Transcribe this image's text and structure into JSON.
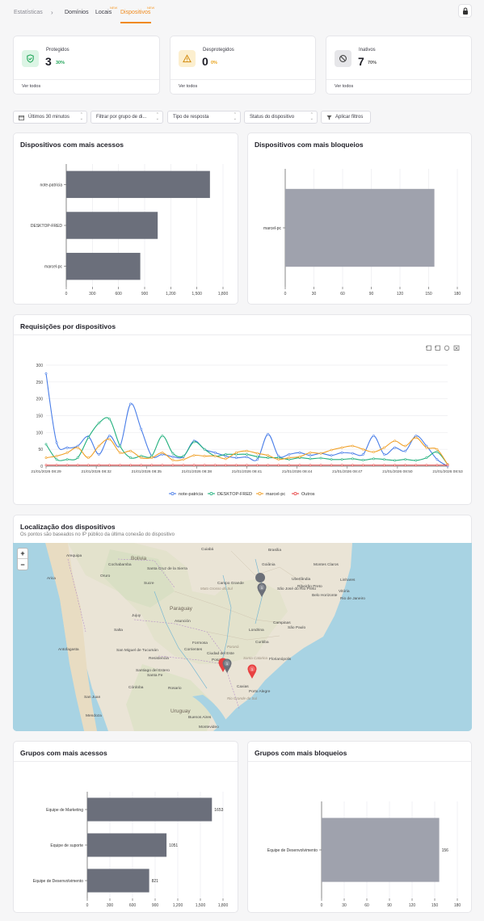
{
  "nav": {
    "breadcrumb_root": "Estatísticas",
    "separator": "›",
    "tabs": [
      {
        "label": "Domínios"
      },
      {
        "label": "Locais",
        "badge": "NEW"
      },
      {
        "label": "Dispositivos",
        "badge": "NEW",
        "active": true
      }
    ],
    "lock_icon": "lock-icon"
  },
  "stats": [
    {
      "title": "Protegidos",
      "value": "3",
      "pct": "30%",
      "link": "Ver todos",
      "icon": "shield-icon",
      "color": "#22a55a",
      "bg": "#dcf5e5"
    },
    {
      "title": "Desprotegidos",
      "value": "0",
      "pct": "0%",
      "link": "Ver todos",
      "icon": "warning-icon",
      "color": "#e8a21a",
      "bg": "#fcefcf"
    },
    {
      "title": "Inativos",
      "value": "7",
      "pct": "70%",
      "link": "Ver todos",
      "icon": "block-icon",
      "color": "#555",
      "bg": "#e6e6e9"
    }
  ],
  "filters": {
    "time": "Últimos 30 minutos",
    "group": "Filtrar por grupo de di...",
    "response": "Tipo de resposta",
    "status": "Status do dispositivo",
    "apply": "Aplicar filtros"
  },
  "panels": {
    "top_access": {
      "title": "Dispositivos com mais acessos"
    },
    "top_blocks": {
      "title": "Dispositivos com mais bloqueios"
    },
    "requests": {
      "title": "Requisições por dispositivos"
    },
    "location": {
      "title": "Localização dos dispositivos",
      "subtitle": "Os pontos são baseados no IP público da última conexão do dispositivo"
    },
    "groups_access": {
      "title": "Grupos com mais acessos"
    },
    "groups_blocks": {
      "title": "Grupos com mais bloqueios"
    }
  },
  "map": {
    "zoom_in": "+",
    "zoom_out": "−",
    "labels": [
      {
        "t": "Cuiabá",
        "k": "city"
      },
      {
        "t": "Brasília",
        "k": "city"
      },
      {
        "t": "Goiânia",
        "k": "city"
      },
      {
        "t": "Bolivia",
        "k": "country"
      },
      {
        "t": "Cochabamba",
        "k": "city"
      },
      {
        "t": "Santa Cruz de la Sierra",
        "k": "city"
      },
      {
        "t": "Oruro",
        "k": "city"
      },
      {
        "t": "Sucre",
        "k": "city"
      },
      {
        "t": "Arequipa",
        "k": "city"
      },
      {
        "t": "Arica",
        "k": "city"
      },
      {
        "t": "Montes Claros",
        "k": "city"
      },
      {
        "t": "Uberlândia",
        "k": "city"
      },
      {
        "t": "Belo Horizonte",
        "k": "city"
      },
      {
        "t": "Ribeirão Preto",
        "k": "city"
      },
      {
        "t": "São José do Rio Preto",
        "k": "city"
      },
      {
        "t": "Linhares",
        "k": "city"
      },
      {
        "t": "Vitória",
        "k": "city"
      },
      {
        "t": "Campo Grande",
        "k": "city"
      },
      {
        "t": "Mato Grosso do Sul",
        "k": "region"
      },
      {
        "t": "Paraguay",
        "k": "country"
      },
      {
        "t": "Asunción",
        "k": "city"
      },
      {
        "t": "Londrina",
        "k": "city"
      },
      {
        "t": "Campinas",
        "k": "city"
      },
      {
        "t": "São Paulo",
        "k": "city"
      },
      {
        "t": "Curitiba",
        "k": "city"
      },
      {
        "t": "Ciudad del Este",
        "k": "city"
      },
      {
        "t": "Formosa",
        "k": "city"
      },
      {
        "t": "Corrientes",
        "k": "city"
      },
      {
        "t": "Posadas",
        "k": "city"
      },
      {
        "t": "Antofagasta",
        "k": "city"
      },
      {
        "t": "Salta",
        "k": "city"
      },
      {
        "t": "San Miguel de Tucumán",
        "k": "city"
      },
      {
        "t": "Resistencia",
        "k": "city"
      },
      {
        "t": "Santa Fe",
        "k": "city"
      },
      {
        "t": "Córdoba",
        "k": "city"
      },
      {
        "t": "San Juan",
        "k": "city"
      },
      {
        "t": "Mendoza",
        "k": "city"
      },
      {
        "t": "Rosario",
        "k": "city"
      },
      {
        "t": "Buenos Aires",
        "k": "city"
      },
      {
        "t": "Montevideo",
        "k": "city"
      },
      {
        "t": "Uruguay",
        "k": "country"
      },
      {
        "t": "Porto Alegre",
        "k": "city"
      },
      {
        "t": "Caxias",
        "k": "city"
      },
      {
        "t": "Rio Grande do Sul",
        "k": "region"
      },
      {
        "t": "Santa Catarina",
        "k": "region"
      },
      {
        "t": "Florianópolis",
        "k": "city"
      },
      {
        "t": "Paraná",
        "k": "region"
      },
      {
        "t": "Santiago del Estero",
        "k": "city"
      },
      {
        "t": "Jujuy",
        "k": "city"
      },
      {
        "t": "Rio de Janeiro",
        "k": "city"
      }
    ],
    "markers": [
      {
        "label": "1",
        "color": "#6b6f78"
      },
      {
        "label": "1",
        "color": "#6b6f78"
      },
      {
        "label": "1",
        "color": "#e84040"
      },
      {
        "label": "",
        "color": "#e84040"
      }
    ]
  },
  "chart_data": [
    {
      "type": "bar",
      "orientation": "horizontal",
      "title": "Dispositivos com mais acessos",
      "categories": [
        "note-patricia",
        "DESKTOP-FRED",
        "marcel-pc"
      ],
      "values": [
        1650,
        1050,
        850
      ],
      "xlim": [
        0,
        1800
      ],
      "ticks": [
        0,
        300,
        600,
        900,
        1200,
        1500,
        1800
      ],
      "tick_labels": [
        "0",
        "300",
        "600",
        "900",
        "1,200",
        "1,500",
        "1,800"
      ],
      "color": "#6b6f7b",
      "grid": true
    },
    {
      "type": "bar",
      "orientation": "horizontal",
      "title": "Dispositivos com mais bloqueios",
      "categories": [
        "marcel-pc"
      ],
      "values": [
        156
      ],
      "xlim": [
        0,
        180
      ],
      "ticks": [
        0,
        30,
        60,
        90,
        120,
        150,
        180
      ],
      "tick_labels": [
        "0",
        "30",
        "60",
        "90",
        "120",
        "150",
        "180"
      ],
      "color": "#9fa2ad",
      "grid": true
    },
    {
      "type": "line",
      "title": "Requisições por dispositivos",
      "ylim": [
        0,
        300
      ],
      "yticks": [
        0,
        50,
        100,
        150,
        200,
        250,
        300
      ],
      "x_tick_labels": [
        "21/01/2026 08:29",
        "21/01/2026 08:32",
        "21/01/2026 08:35",
        "21/01/2026 08:38",
        "21/01/2026 08:41",
        "21/01/2026 08:44",
        "21/01/2026 08:47",
        "21/01/2026 08:50",
        "21/01/2026 08:53"
      ],
      "legend_position": "bottom",
      "toolbar_icons": [
        "zoom-icon",
        "zoom-reset-icon",
        "restore-icon",
        "download-icon"
      ],
      "series": [
        {
          "name": "note-patricia",
          "color": "#4a7ee8",
          "values": [
            275,
            70,
            55,
            60,
            88,
            35,
            90,
            60,
            185,
            110,
            30,
            35,
            28,
            28,
            75,
            50,
            40,
            30,
            25,
            27,
            20,
            95,
            30,
            35,
            40,
            32,
            38,
            32,
            40,
            38,
            35,
            90,
            35,
            55,
            45,
            90,
            60,
            20,
            0
          ]
        },
        {
          "name": "DESKTOP-FRED",
          "color": "#22b07d",
          "values": [
            65,
            20,
            20,
            25,
            85,
            128,
            140,
            60,
            25,
            30,
            30,
            90,
            38,
            30,
            72,
            50,
            30,
            35,
            35,
            35,
            28,
            25,
            25,
            20,
            25,
            22,
            24,
            20,
            20,
            22,
            18,
            22,
            20,
            17,
            20,
            17,
            25,
            42,
            5
          ]
        },
        {
          "name": "marcel-pc",
          "color": "#f0a028",
          "values": [
            25,
            30,
            40,
            55,
            25,
            60,
            80,
            40,
            45,
            25,
            25,
            40,
            18,
            20,
            32,
            30,
            30,
            22,
            40,
            45,
            38,
            32,
            20,
            25,
            28,
            40,
            38,
            48,
            55,
            60,
            50,
            42,
            55,
            75,
            60,
            85,
            55,
            50,
            5
          ]
        },
        {
          "name": "Outros",
          "color": "#e84848",
          "values": [
            3,
            3,
            3,
            3,
            3,
            3,
            3,
            3,
            3,
            3,
            3,
            3,
            3,
            3,
            3,
            3,
            3,
            3,
            3,
            3,
            3,
            3,
            3,
            3,
            3,
            3,
            3,
            3,
            3,
            3,
            3,
            3,
            3,
            3,
            3,
            3,
            3,
            3,
            3
          ]
        }
      ]
    },
    {
      "type": "bar",
      "orientation": "horizontal",
      "title": "Grupos com mais acessos",
      "categories": [
        "Equipe de Marketing",
        "Equipe de suporte",
        "Equipe de Desenvolvimento"
      ],
      "values": [
        1653,
        1051,
        821
      ],
      "value_labels": [
        "1653",
        "1051",
        "821"
      ],
      "xlim": [
        0,
        1800
      ],
      "ticks": [
        0,
        300,
        600,
        900,
        1200,
        1500,
        1800
      ],
      "tick_labels": [
        "0",
        "300",
        "600",
        "900",
        "1,200",
        "1,500",
        "1,800"
      ],
      "color": "#6b6f7b",
      "grid": true
    },
    {
      "type": "bar",
      "orientation": "horizontal",
      "title": "Grupos com mais bloqueios",
      "categories": [
        "Equipe de Desenvolvimento"
      ],
      "values": [
        156
      ],
      "value_labels": [
        "156"
      ],
      "xlim": [
        0,
        180
      ],
      "ticks": [
        0,
        30,
        60,
        90,
        120,
        150,
        180
      ],
      "tick_labels": [
        "0",
        "30",
        "60",
        "90",
        "120",
        "150",
        "180"
      ],
      "color": "#9fa2ad",
      "grid": true
    }
  ]
}
